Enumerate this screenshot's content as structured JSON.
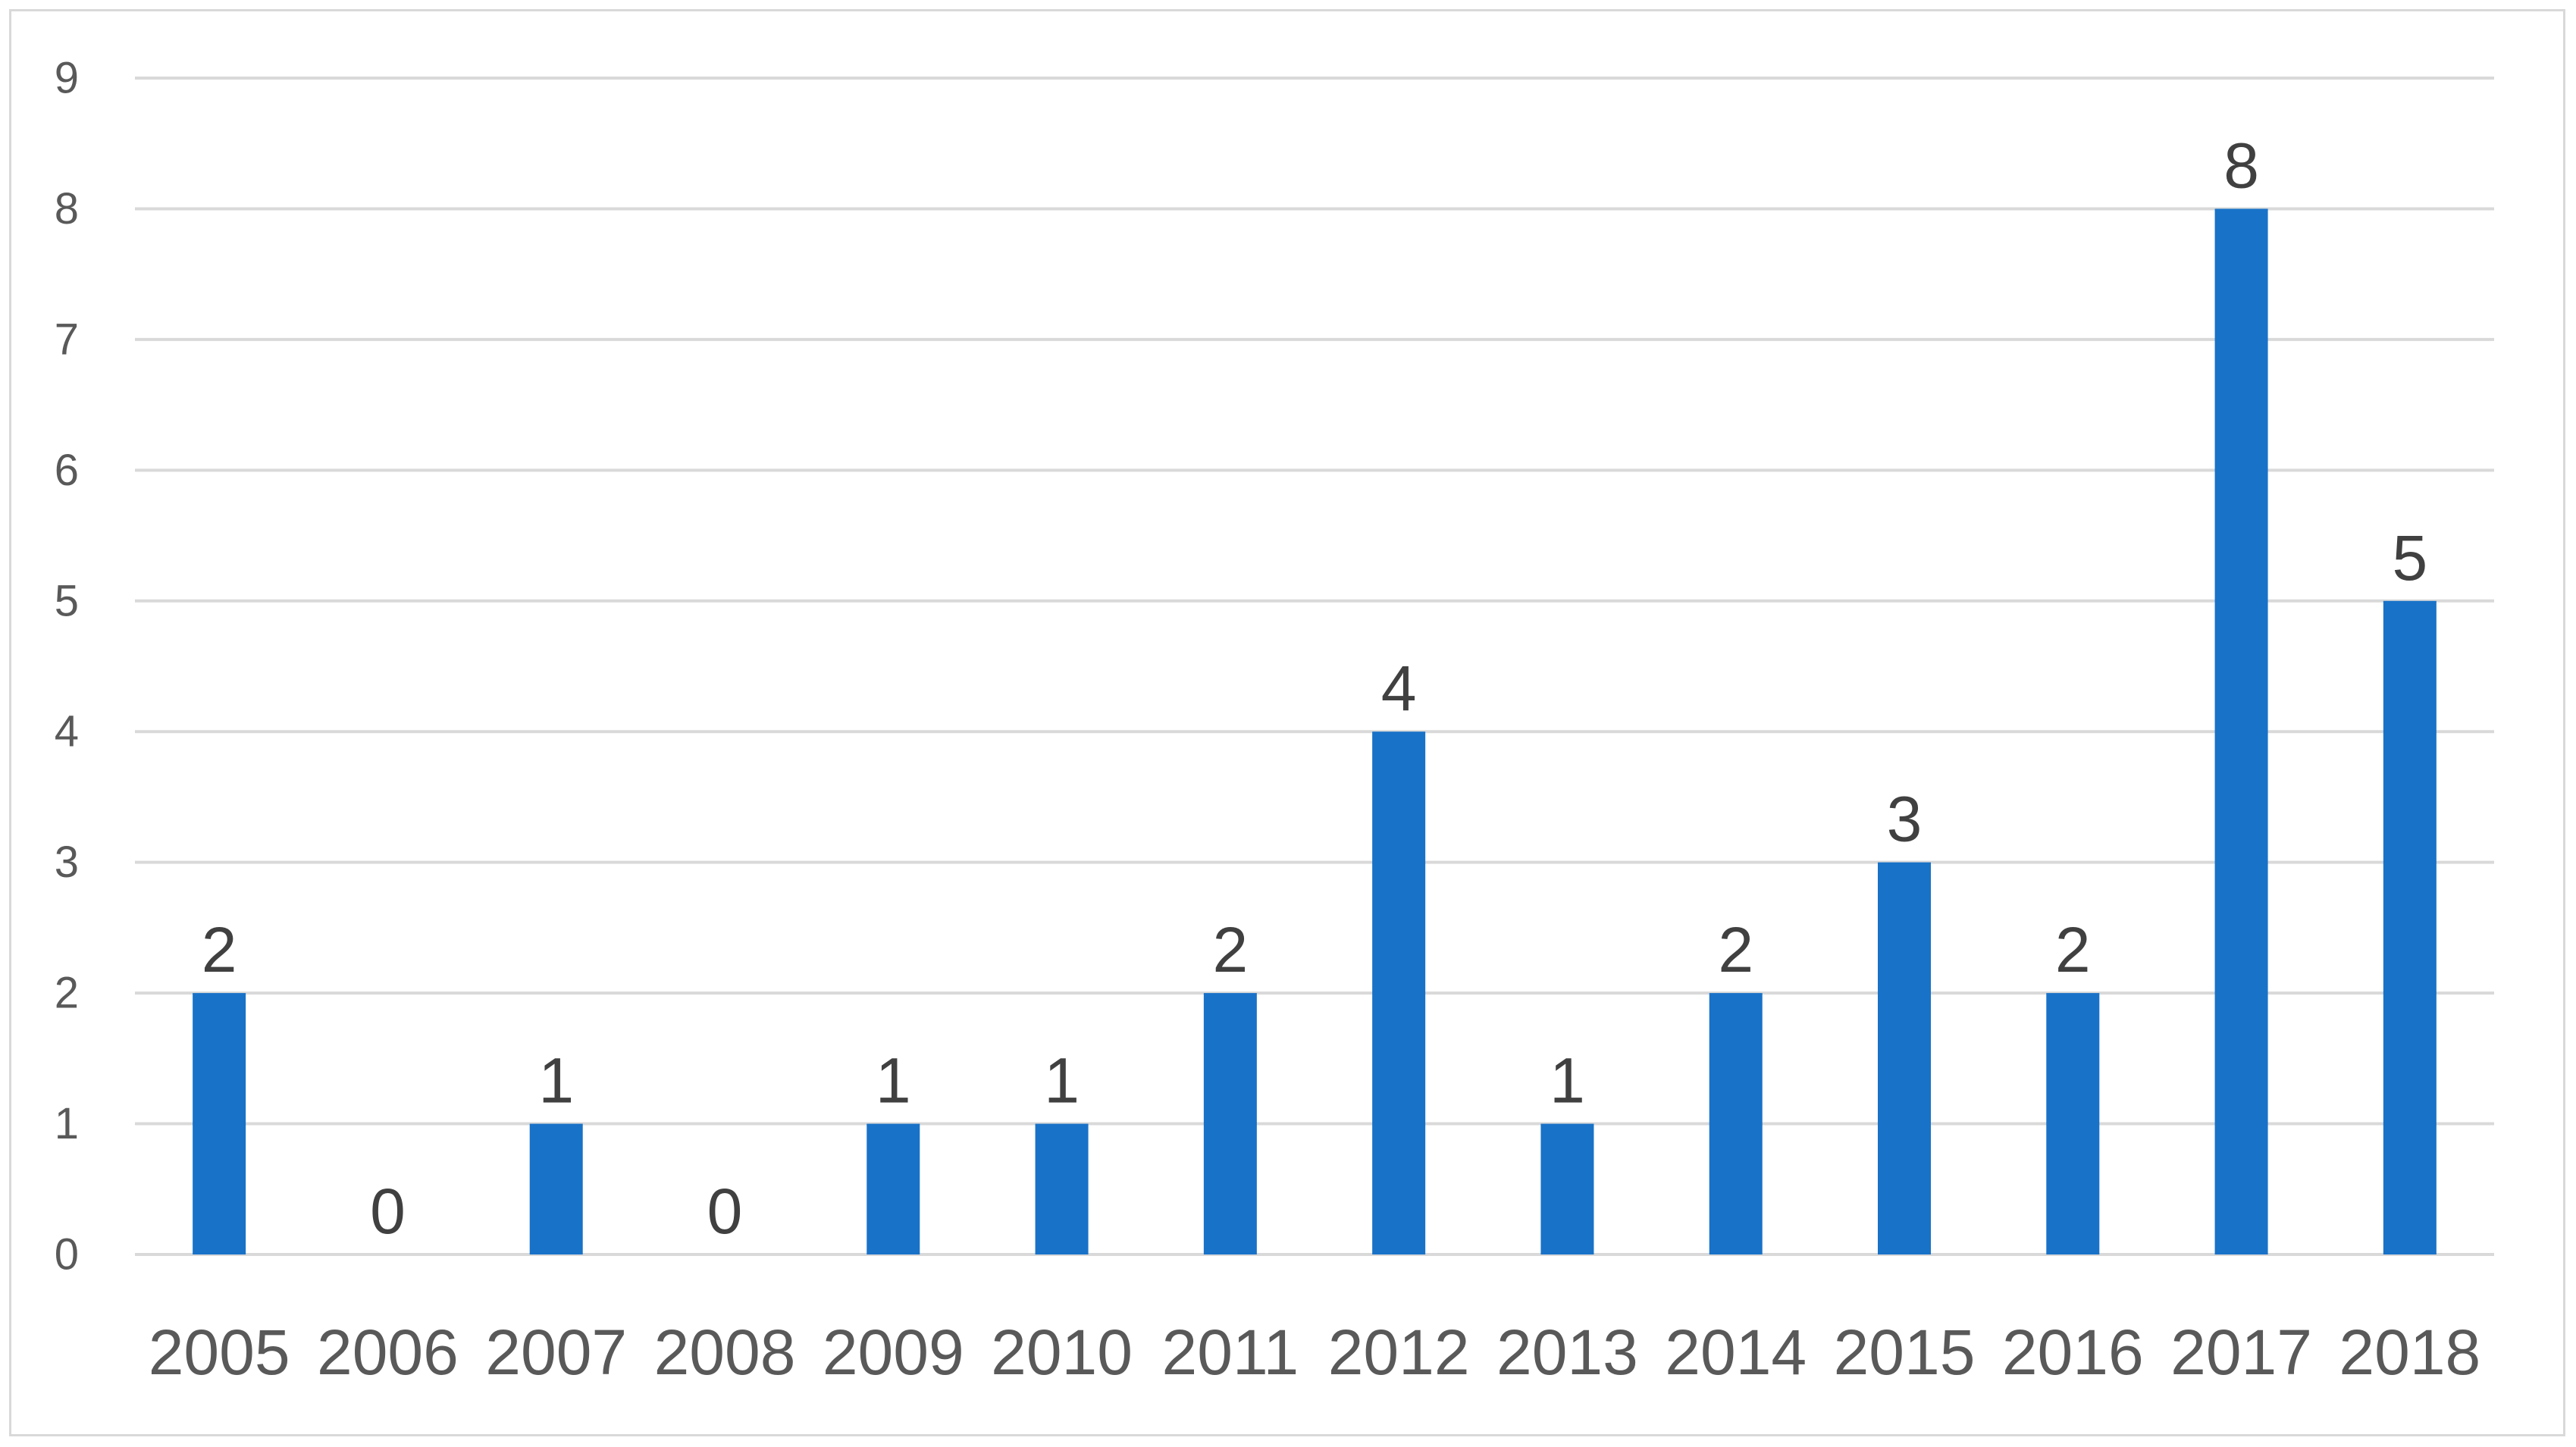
{
  "chart_data": {
    "type": "bar",
    "title": "",
    "xlabel": "",
    "ylabel": "",
    "categories": [
      "2005",
      "2006",
      "2007",
      "2008",
      "2009",
      "2010",
      "2011",
      "2012",
      "2013",
      "2014",
      "2015",
      "2016",
      "2017",
      "2018"
    ],
    "values": [
      2,
      0,
      1,
      0,
      1,
      1,
      2,
      4,
      1,
      2,
      3,
      2,
      8,
      5
    ],
    "ylim": [
      0,
      9
    ],
    "yticks": [
      0,
      1,
      2,
      3,
      4,
      5,
      6,
      7,
      8,
      9
    ],
    "grid": true,
    "legend": "none",
    "data_labels": true,
    "colors": {
      "bar": "#1872C8",
      "grid": "#d9d9d9",
      "tick_text": "#595959",
      "label_text": "#404040"
    }
  }
}
